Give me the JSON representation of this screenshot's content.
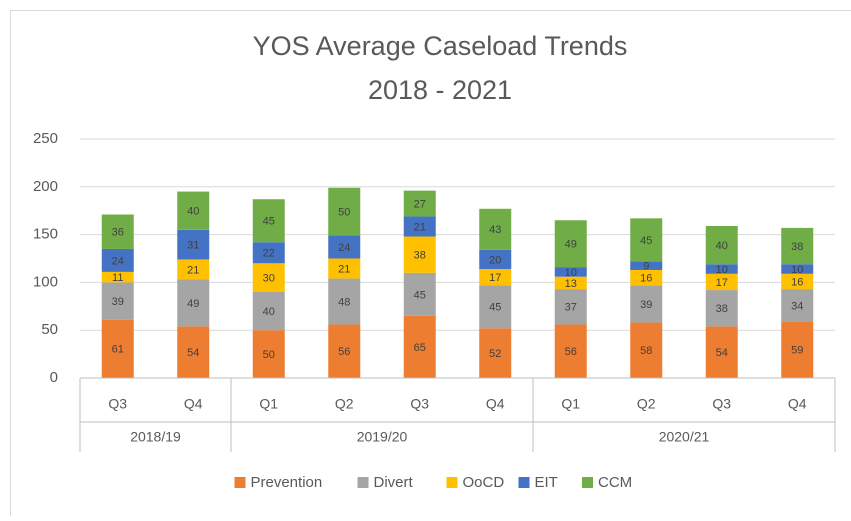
{
  "chart_data": {
    "type": "stacked_bar",
    "title": [
      "YOS Average Caseload Trends",
      "2018 - 2021"
    ],
    "groups": [
      {
        "label": "2018/19",
        "categories": [
          "Q3",
          "Q4"
        ]
      },
      {
        "label": "2019/20",
        "categories": [
          "Q1",
          "Q2",
          "Q3",
          "Q4"
        ]
      },
      {
        "label": "2020/21",
        "categories": [
          "Q1",
          "Q2",
          "Q3",
          "Q4"
        ]
      }
    ],
    "series": [
      {
        "name": "Prevention",
        "color": "#ed7d31",
        "values": [
          61,
          54,
          50,
          56,
          65,
          52,
          56,
          58,
          54,
          59
        ]
      },
      {
        "name": "Divert",
        "color": "#a5a5a5",
        "values": [
          39,
          49,
          40,
          48,
          45,
          45,
          37,
          39,
          38,
          34
        ]
      },
      {
        "name": "OoCD",
        "color": "#ffc000",
        "values": [
          11,
          21,
          30,
          21,
          38,
          17,
          13,
          16,
          17,
          16
        ]
      },
      {
        "name": "EIT",
        "color": "#4472c4",
        "values": [
          24,
          31,
          22,
          24,
          21,
          20,
          10,
          9,
          10,
          10
        ]
      },
      {
        "name": "CCM",
        "color": "#70ad47",
        "values": [
          36,
          40,
          45,
          50,
          27,
          43,
          49,
          45,
          40,
          38
        ]
      }
    ],
    "ylim": [
      0,
      250
    ],
    "yticks": [
      0,
      50,
      100,
      150,
      200,
      250
    ],
    "grid": true,
    "legend": "bottom"
  }
}
